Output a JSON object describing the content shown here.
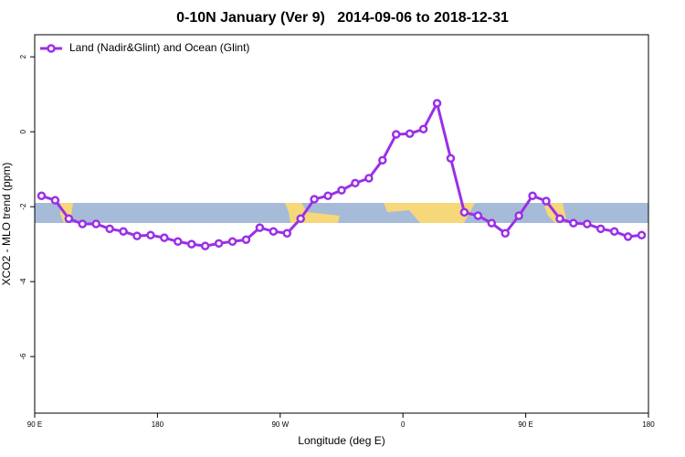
{
  "chart_data": {
    "type": "line",
    "title": "0-10N January (Ver 9)   2014-09-06 to 2018-12-31",
    "x_label": "Longitude (deg E)",
    "y_label": "XCO2 - MLO trend (ppm)",
    "x": [
      95,
      105,
      115,
      125,
      135,
      145,
      155,
      165,
      175,
      185,
      195,
      205,
      215,
      225,
      235,
      245,
      255,
      265,
      275,
      285,
      295,
      305,
      315,
      325,
      335,
      345,
      355,
      365,
      375,
      385,
      395,
      405,
      415,
      425,
      435,
      445,
      455,
      465,
      475,
      485,
      495,
      505,
      515,
      525,
      535
    ],
    "series": [
      {
        "name": "Land (Nadir&Glint) and Ocean (Glint)",
        "color": "#9b2fe6",
        "values": [
          -1.71,
          -1.83,
          -2.32,
          -2.46,
          -2.46,
          -2.59,
          -2.66,
          -2.78,
          -2.76,
          -2.83,
          -2.93,
          -3.0,
          -3.05,
          -2.98,
          -2.93,
          -2.88,
          -2.56,
          -2.66,
          -2.71,
          -2.32,
          -1.8,
          -1.71,
          -1.56,
          -1.37,
          -1.24,
          -0.76,
          -0.07,
          -0.05,
          0.07,
          0.76,
          -0.71,
          -2.15,
          -2.24,
          -2.44,
          -2.71,
          -2.24,
          -1.71,
          -1.85,
          -2.32,
          -2.44,
          -2.46,
          -2.59,
          -2.66,
          -2.8,
          -2.76
        ]
      }
    ],
    "xlim": [
      90,
      540
    ],
    "ylim": [
      -7.51,
      2.59
    ],
    "xticks": [
      {
        "value": 90,
        "label": "90 E"
      },
      180,
      {
        "value": 270,
        "label": "90 W"
      },
      {
        "value": 360,
        "label": "0"
      },
      {
        "value": 450,
        "label": "90 E"
      },
      {
        "value": 540,
        "label": "180"
      }
    ],
    "yticks": [
      -6,
      -4,
      -2,
      0,
      2
    ],
    "legend": "top-left"
  }
}
